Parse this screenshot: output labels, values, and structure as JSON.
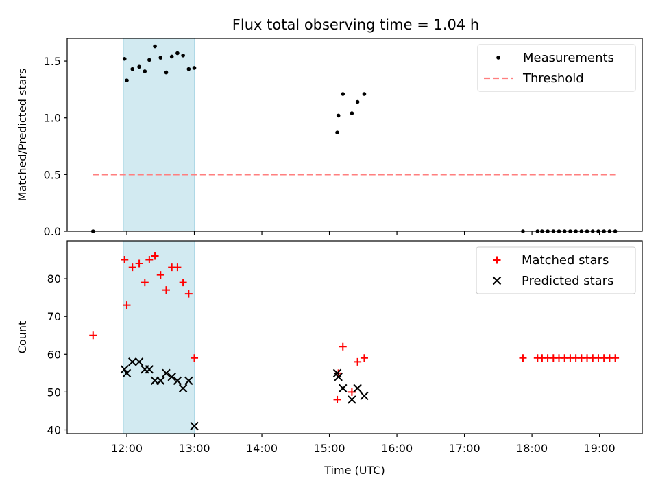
{
  "title": "Flux total observing time = 1.04 h",
  "colors": {
    "measurements": "#000000",
    "threshold": "#ff7f7f",
    "matched": "#ff0000",
    "predicted": "#000000",
    "span": "#add8e6"
  },
  "chart_data": [
    {
      "type": "scatter",
      "ylabel": "Matched/Predicted stars",
      "xlabel": "",
      "xlim": [
        "11:07",
        "19:38"
      ],
      "ylim": [
        0,
        1.7
      ],
      "yticks": [
        0.0,
        0.5,
        1.0,
        1.5
      ],
      "yticklabels": [
        "0.0",
        "0.5",
        "1.0",
        "1.5"
      ],
      "highlight_span": [
        "11:57",
        "13:00"
      ],
      "legend_position": "upper right",
      "legend": [
        "Measurements",
        "Threshold"
      ],
      "series": [
        {
          "name": "Measurements",
          "marker": "dot",
          "points": [
            [
              "11:30",
              0.0
            ],
            [
              "11:58",
              1.52
            ],
            [
              "12:00",
              1.33
            ],
            [
              "12:05",
              1.43
            ],
            [
              "12:11",
              1.45
            ],
            [
              "12:16",
              1.41
            ],
            [
              "12:20",
              1.51
            ],
            [
              "12:25",
              1.63
            ],
            [
              "12:30",
              1.53
            ],
            [
              "12:35",
              1.4
            ],
            [
              "12:40",
              1.54
            ],
            [
              "12:45",
              1.57
            ],
            [
              "12:50",
              1.55
            ],
            [
              "12:55",
              1.43
            ],
            [
              "13:00",
              1.44
            ],
            [
              "15:07",
              0.87
            ],
            [
              "15:08",
              1.02
            ],
            [
              "15:12",
              1.21
            ],
            [
              "15:20",
              1.04
            ],
            [
              "15:25",
              1.14
            ],
            [
              "15:31",
              1.21
            ],
            [
              "17:52",
              0.0
            ],
            [
              "18:05",
              0.0
            ],
            [
              "18:09",
              0.0
            ],
            [
              "18:14",
              0.0
            ],
            [
              "18:19",
              0.0
            ],
            [
              "18:24",
              0.0
            ],
            [
              "18:29",
              0.0
            ],
            [
              "18:34",
              0.0
            ],
            [
              "18:39",
              0.0
            ],
            [
              "18:44",
              0.0
            ],
            [
              "18:49",
              0.0
            ],
            [
              "18:54",
              0.0
            ],
            [
              "18:59",
              0.0
            ],
            [
              "19:04",
              0.0
            ],
            [
              "19:09",
              0.0
            ],
            [
              "19:14",
              0.0
            ]
          ]
        },
        {
          "name": "Threshold",
          "marker": "dashed-line",
          "points": [
            [
              "11:30",
              0.5
            ],
            [
              "19:14",
              0.5
            ]
          ]
        }
      ]
    },
    {
      "type": "scatter",
      "ylabel": "Count",
      "xlabel": "Time (UTC)",
      "xlim": [
        "11:07",
        "19:38"
      ],
      "ylim": [
        39,
        90
      ],
      "yticks": [
        40,
        50,
        60,
        70,
        80
      ],
      "yticklabels": [
        "40",
        "50",
        "60",
        "70",
        "80"
      ],
      "xticks": [
        "12:00",
        "13:00",
        "14:00",
        "15:00",
        "16:00",
        "17:00",
        "18:00",
        "19:00"
      ],
      "highlight_span": [
        "11:57",
        "13:00"
      ],
      "legend_position": "upper right",
      "legend": [
        "Matched stars",
        "Predicted stars"
      ],
      "series": [
        {
          "name": "Matched stars",
          "marker": "plus",
          "points": [
            [
              "11:30",
              65
            ],
            [
              "11:58",
              85
            ],
            [
              "12:00",
              73
            ],
            [
              "12:05",
              83
            ],
            [
              "12:11",
              84
            ],
            [
              "12:16",
              79
            ],
            [
              "12:20",
              85
            ],
            [
              "12:25",
              86
            ],
            [
              "12:30",
              81
            ],
            [
              "12:35",
              77
            ],
            [
              "12:40",
              83
            ],
            [
              "12:45",
              83
            ],
            [
              "12:50",
              79
            ],
            [
              "12:55",
              76
            ],
            [
              "13:00",
              59
            ],
            [
              "15:07",
              48
            ],
            [
              "15:08",
              55
            ],
            [
              "15:12",
              62
            ],
            [
              "15:20",
              50
            ],
            [
              "15:25",
              58
            ],
            [
              "15:31",
              59
            ],
            [
              "17:52",
              59
            ],
            [
              "18:05",
              59
            ],
            [
              "18:09",
              59
            ],
            [
              "18:14",
              59
            ],
            [
              "18:19",
              59
            ],
            [
              "18:24",
              59
            ],
            [
              "18:29",
              59
            ],
            [
              "18:34",
              59
            ],
            [
              "18:39",
              59
            ],
            [
              "18:44",
              59
            ],
            [
              "18:49",
              59
            ],
            [
              "18:54",
              59
            ],
            [
              "18:59",
              59
            ],
            [
              "19:04",
              59
            ],
            [
              "19:09",
              59
            ],
            [
              "19:14",
              59
            ]
          ]
        },
        {
          "name": "Predicted stars",
          "marker": "x",
          "points": [
            [
              "11:58",
              56
            ],
            [
              "12:00",
              55
            ],
            [
              "12:05",
              58
            ],
            [
              "12:11",
              58
            ],
            [
              "12:16",
              56
            ],
            [
              "12:20",
              56
            ],
            [
              "12:25",
              53
            ],
            [
              "12:30",
              53
            ],
            [
              "12:35",
              55
            ],
            [
              "12:40",
              54
            ],
            [
              "12:45",
              53
            ],
            [
              "12:50",
              51
            ],
            [
              "12:55",
              53
            ],
            [
              "13:00",
              41
            ],
            [
              "15:07",
              55
            ],
            [
              "15:08",
              54
            ],
            [
              "15:12",
              51
            ],
            [
              "15:20",
              48
            ],
            [
              "15:25",
              51
            ],
            [
              "15:31",
              49
            ]
          ]
        }
      ]
    }
  ]
}
